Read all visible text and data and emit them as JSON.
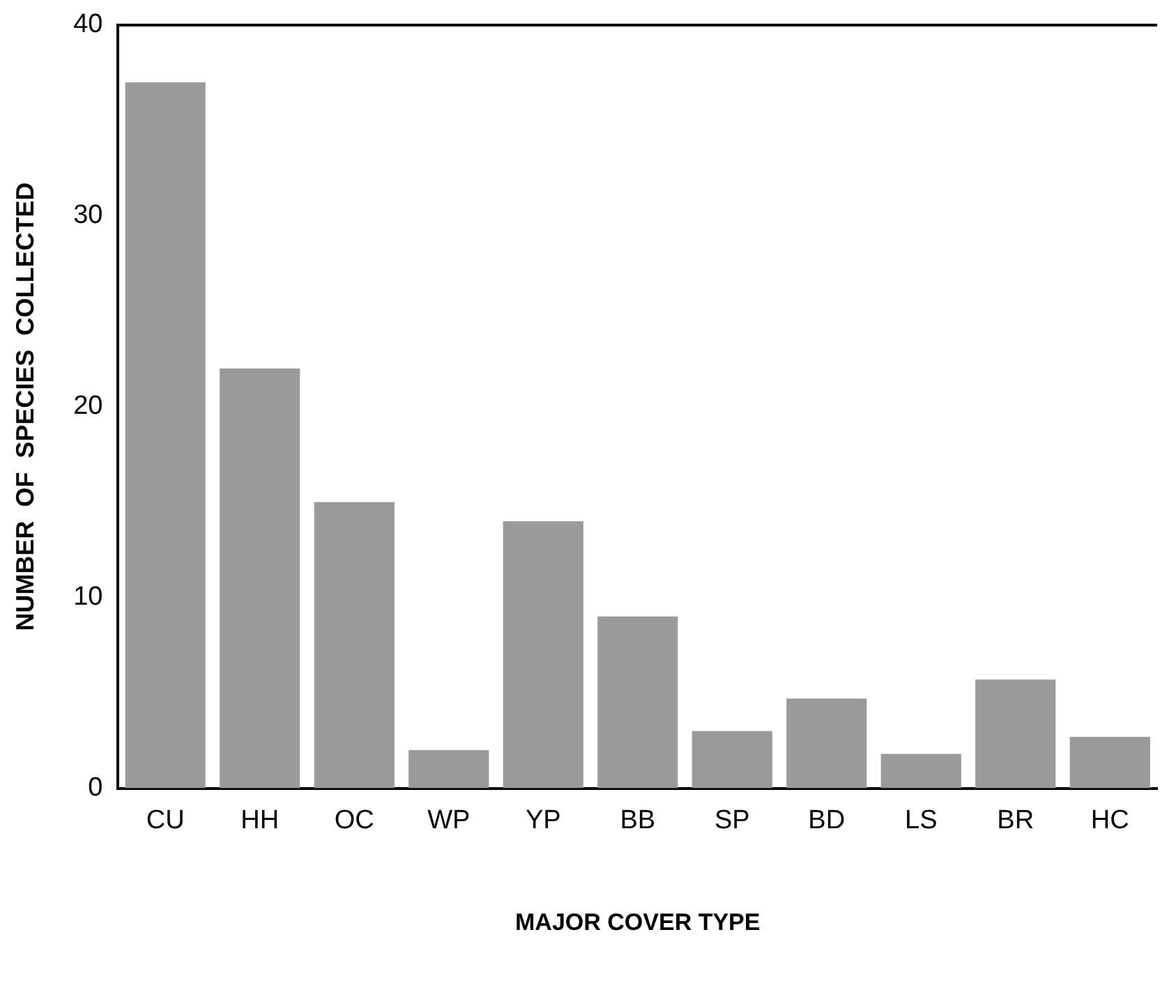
{
  "chart_data": {
    "type": "bar",
    "xlabel": "MAJOR COVER TYPE",
    "ylabel": "NUMBER  OF  SPECIES  COLLECTED",
    "categories": [
      "CU",
      "HH",
      "OC",
      "WP",
      "YP",
      "BB",
      "SP",
      "BD",
      "LS",
      "BR",
      "HC"
    ],
    "values": [
      37,
      22,
      15,
      2,
      14,
      9,
      3,
      4.7,
      1.8,
      5.7,
      2.7
    ],
    "color": "#9a9a9a",
    "ylim": [
      0,
      40
    ],
    "yticks": [
      0,
      10,
      20,
      30,
      40
    ],
    "grid": false,
    "legend": false
  }
}
